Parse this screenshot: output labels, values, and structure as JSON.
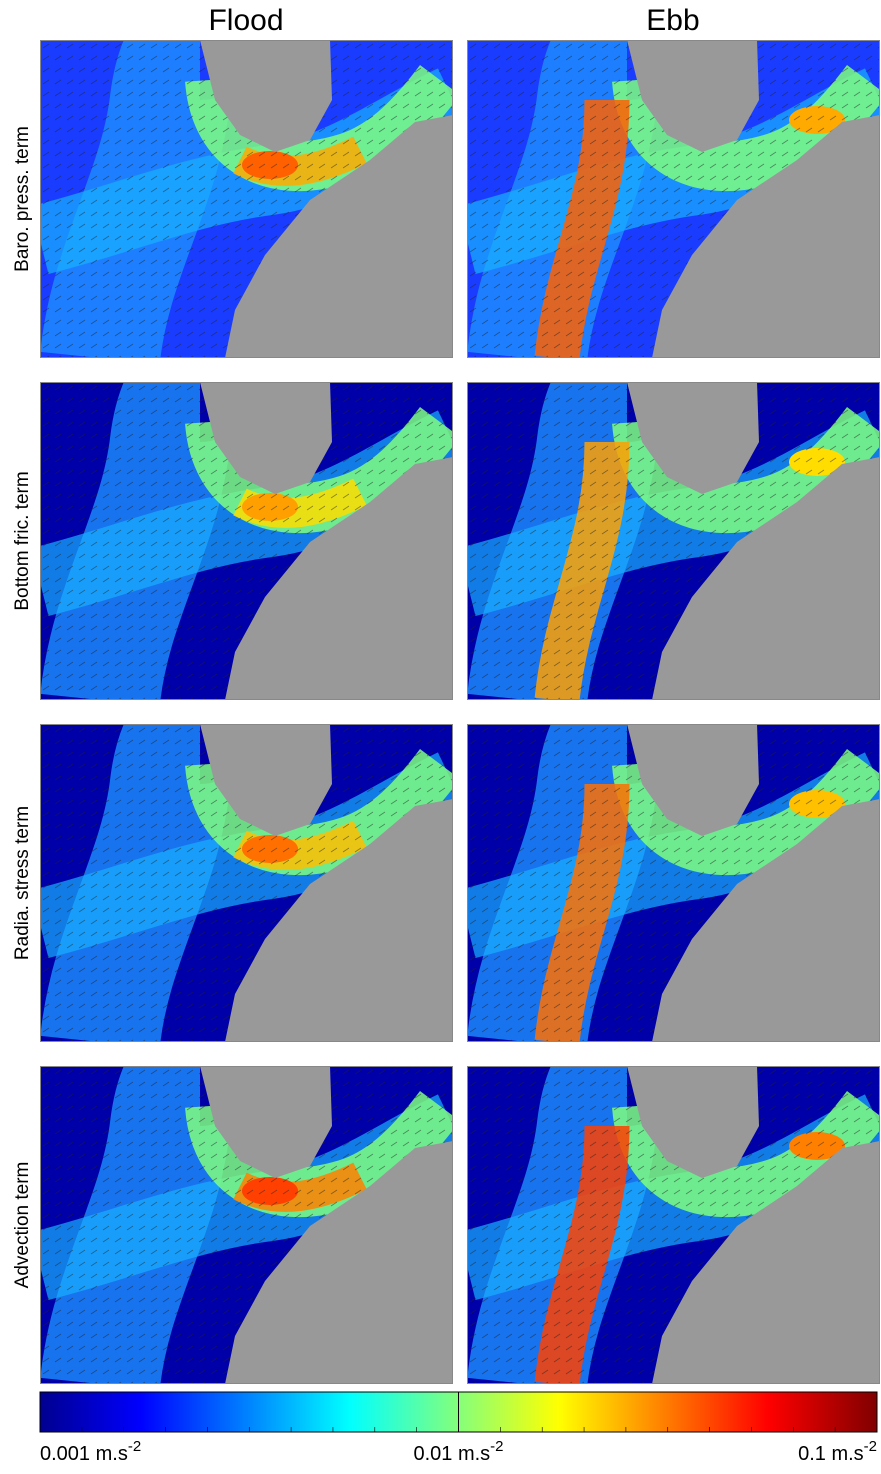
{
  "columns": [
    "Flood",
    "Ebb"
  ],
  "rows": [
    "Baro. press. term",
    "Bottom fric. term",
    "Radia. stress term",
    "Advection term"
  ],
  "colorbar": {
    "scale": "log",
    "lim": [
      0.001,
      0.1
    ],
    "ticks": [
      {
        "value": 0.001,
        "label": "0.001 m.s",
        "sup": "-2"
      },
      {
        "value": 0.01,
        "label": "0.01 m.s",
        "sup": "-2"
      },
      {
        "value": 0.1,
        "label": "0.1 m.s",
        "sup": "-2"
      }
    ]
  }
}
